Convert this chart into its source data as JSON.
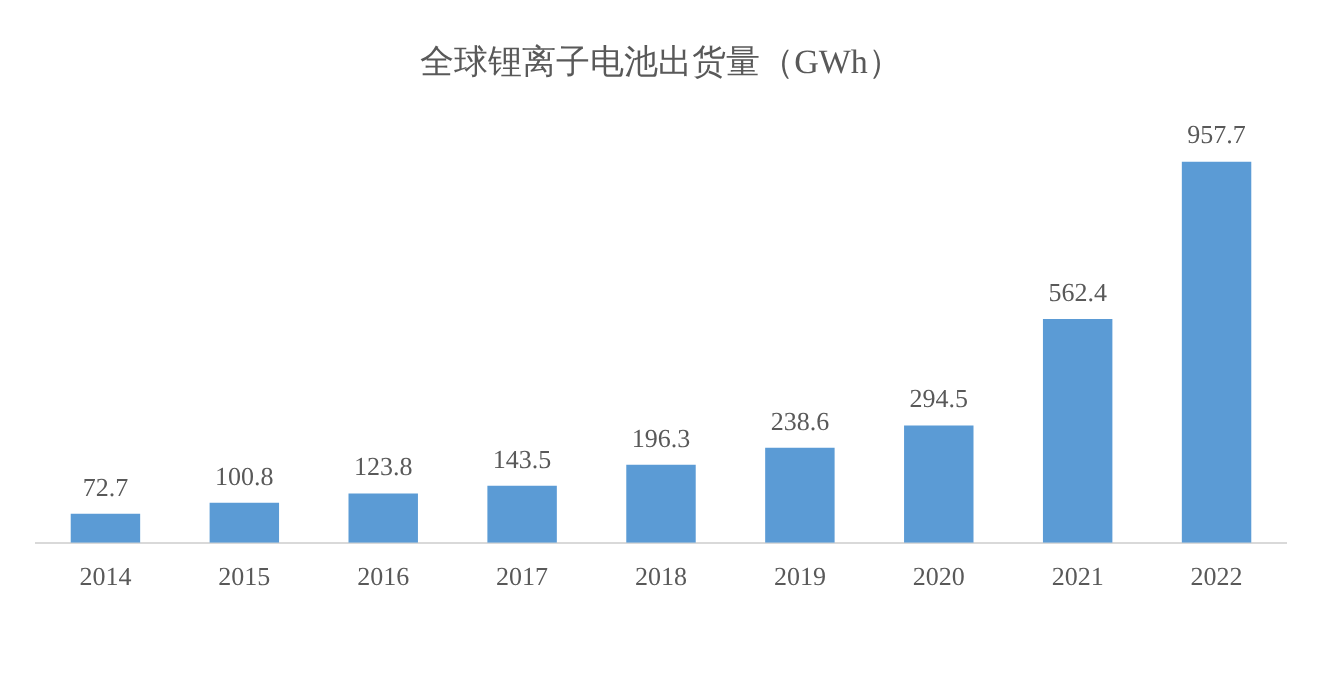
{
  "chart_data": {
    "type": "bar",
    "title": "全球锂离子电池出货量（GWh）",
    "categories": [
      "2014",
      "2015",
      "2016",
      "2017",
      "2018",
      "2019",
      "2020",
      "2021",
      "2022"
    ],
    "values": [
      72.7,
      100.8,
      123.8,
      143.5,
      196.3,
      238.6,
      294.5,
      562.4,
      957.7
    ],
    "color": "#5b9bd5",
    "data_labels": true,
    "grid": false,
    "legend": false,
    "tick_labels": "x"
  }
}
